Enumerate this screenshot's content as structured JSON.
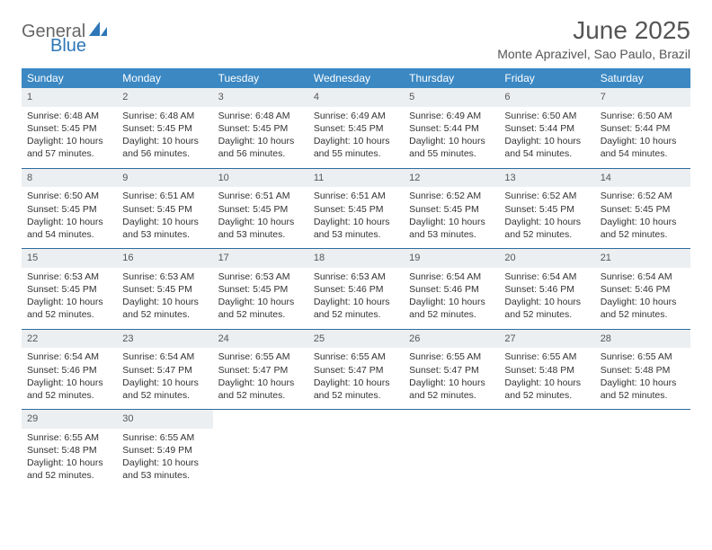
{
  "logo": {
    "text1": "General",
    "text2": "Blue",
    "icon_color": "#2e77b8"
  },
  "title": "June 2025",
  "location": "Monte Aprazivel, Sao Paulo, Brazil",
  "colors": {
    "header_bg": "#3b88c3",
    "header_text": "#ffffff",
    "daynum_bg": "#eceff1",
    "row_border": "#2e6a9e",
    "body_text": "#333333",
    "title_text": "#555555"
  },
  "fonts": {
    "title_size": 28,
    "location_size": 14,
    "th_size": 12,
    "cell_size": 10.5
  },
  "weekdays": [
    "Sunday",
    "Monday",
    "Tuesday",
    "Wednesday",
    "Thursday",
    "Friday",
    "Saturday"
  ],
  "days": [
    {
      "n": "1",
      "sr": "6:48 AM",
      "ss": "5:45 PM",
      "dl": "10 hours and 57 minutes."
    },
    {
      "n": "2",
      "sr": "6:48 AM",
      "ss": "5:45 PM",
      "dl": "10 hours and 56 minutes."
    },
    {
      "n": "3",
      "sr": "6:48 AM",
      "ss": "5:45 PM",
      "dl": "10 hours and 56 minutes."
    },
    {
      "n": "4",
      "sr": "6:49 AM",
      "ss": "5:45 PM",
      "dl": "10 hours and 55 minutes."
    },
    {
      "n": "5",
      "sr": "6:49 AM",
      "ss": "5:44 PM",
      "dl": "10 hours and 55 minutes."
    },
    {
      "n": "6",
      "sr": "6:50 AM",
      "ss": "5:44 PM",
      "dl": "10 hours and 54 minutes."
    },
    {
      "n": "7",
      "sr": "6:50 AM",
      "ss": "5:44 PM",
      "dl": "10 hours and 54 minutes."
    },
    {
      "n": "8",
      "sr": "6:50 AM",
      "ss": "5:45 PM",
      "dl": "10 hours and 54 minutes."
    },
    {
      "n": "9",
      "sr": "6:51 AM",
      "ss": "5:45 PM",
      "dl": "10 hours and 53 minutes."
    },
    {
      "n": "10",
      "sr": "6:51 AM",
      "ss": "5:45 PM",
      "dl": "10 hours and 53 minutes."
    },
    {
      "n": "11",
      "sr": "6:51 AM",
      "ss": "5:45 PM",
      "dl": "10 hours and 53 minutes."
    },
    {
      "n": "12",
      "sr": "6:52 AM",
      "ss": "5:45 PM",
      "dl": "10 hours and 53 minutes."
    },
    {
      "n": "13",
      "sr": "6:52 AM",
      "ss": "5:45 PM",
      "dl": "10 hours and 52 minutes."
    },
    {
      "n": "14",
      "sr": "6:52 AM",
      "ss": "5:45 PM",
      "dl": "10 hours and 52 minutes."
    },
    {
      "n": "15",
      "sr": "6:53 AM",
      "ss": "5:45 PM",
      "dl": "10 hours and 52 minutes."
    },
    {
      "n": "16",
      "sr": "6:53 AM",
      "ss": "5:45 PM",
      "dl": "10 hours and 52 minutes."
    },
    {
      "n": "17",
      "sr": "6:53 AM",
      "ss": "5:45 PM",
      "dl": "10 hours and 52 minutes."
    },
    {
      "n": "18",
      "sr": "6:53 AM",
      "ss": "5:46 PM",
      "dl": "10 hours and 52 minutes."
    },
    {
      "n": "19",
      "sr": "6:54 AM",
      "ss": "5:46 PM",
      "dl": "10 hours and 52 minutes."
    },
    {
      "n": "20",
      "sr": "6:54 AM",
      "ss": "5:46 PM",
      "dl": "10 hours and 52 minutes."
    },
    {
      "n": "21",
      "sr": "6:54 AM",
      "ss": "5:46 PM",
      "dl": "10 hours and 52 minutes."
    },
    {
      "n": "22",
      "sr": "6:54 AM",
      "ss": "5:46 PM",
      "dl": "10 hours and 52 minutes."
    },
    {
      "n": "23",
      "sr": "6:54 AM",
      "ss": "5:47 PM",
      "dl": "10 hours and 52 minutes."
    },
    {
      "n": "24",
      "sr": "6:55 AM",
      "ss": "5:47 PM",
      "dl": "10 hours and 52 minutes."
    },
    {
      "n": "25",
      "sr": "6:55 AM",
      "ss": "5:47 PM",
      "dl": "10 hours and 52 minutes."
    },
    {
      "n": "26",
      "sr": "6:55 AM",
      "ss": "5:47 PM",
      "dl": "10 hours and 52 minutes."
    },
    {
      "n": "27",
      "sr": "6:55 AM",
      "ss": "5:48 PM",
      "dl": "10 hours and 52 minutes."
    },
    {
      "n": "28",
      "sr": "6:55 AM",
      "ss": "5:48 PM",
      "dl": "10 hours and 52 minutes."
    },
    {
      "n": "29",
      "sr": "6:55 AM",
      "ss": "5:48 PM",
      "dl": "10 hours and 52 minutes."
    },
    {
      "n": "30",
      "sr": "6:55 AM",
      "ss": "5:49 PM",
      "dl": "10 hours and 53 minutes."
    }
  ],
  "labels": {
    "sunrise": "Sunrise:",
    "sunset": "Sunset:",
    "daylight": "Daylight:"
  }
}
